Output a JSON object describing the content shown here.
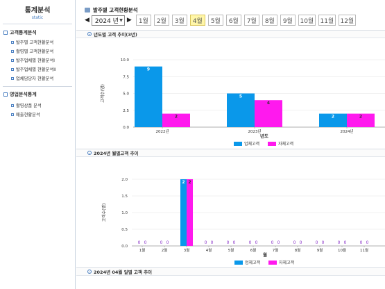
{
  "sidebar": {
    "title": "통계분석",
    "subtitle": "static",
    "groups": [
      {
        "label": "고객통계분석",
        "items": [
          {
            "label": "발주별 고객현황분석"
          },
          {
            "label": "촬영별 고객현황분석"
          },
          {
            "label": "발주업체별 현황분석Ⅰ"
          },
          {
            "label": "발주업체별 현황분석Ⅱ"
          },
          {
            "label": "업체담당자 현황분석"
          }
        ]
      },
      {
        "label": "영업분석통계",
        "items": [
          {
            "label": "촬영상품 분석"
          },
          {
            "label": "매출현황분석"
          }
        ]
      }
    ]
  },
  "header": {
    "title": "발주별 고객현황분석"
  },
  "toolbar": {
    "year": "2024 년",
    "months": [
      "1월",
      "2월",
      "3월",
      "4월",
      "5월",
      "6월",
      "7월",
      "8월",
      "9월",
      "10월",
      "11월",
      "12월"
    ],
    "active_month": "4월"
  },
  "sections": {
    "yearly": "년도별 고객 추이(3년)",
    "monthly": "2024년 월별고객 추이",
    "daily": "2024년 04월 일별 고객 추이"
  },
  "colors": {
    "series1": "#0a98ea",
    "series2": "#ff19ee"
  },
  "chart_data": [
    {
      "type": "bar",
      "title": "년도별 고객 추이(3년)",
      "xlabel": "년도",
      "ylabel": "고객수(명)",
      "categories": [
        "2022년",
        "2023년",
        "2024년"
      ],
      "series": [
        {
          "name": "업체고객",
          "values": [
            9,
            5,
            2
          ]
        },
        {
          "name": "자체고객",
          "values": [
            2,
            4,
            2
          ]
        }
      ],
      "ylim": [
        0,
        10
      ],
      "yticks": [
        "0.0",
        "2.5",
        "5.0",
        "7.5",
        "10.0"
      ],
      "legend": "bottom"
    },
    {
      "type": "bar",
      "title": "2024년 월별고객 추이",
      "xlabel": "월",
      "ylabel": "고객수(명)",
      "categories": [
        "1월",
        "2월",
        "3월",
        "4월",
        "5월",
        "6월",
        "7월",
        "8월",
        "9월",
        "10월",
        "11월"
      ],
      "series": [
        {
          "name": "업체고객",
          "values": [
            0,
            0,
            2,
            0,
            0,
            0,
            0,
            0,
            0,
            0,
            0
          ]
        },
        {
          "name": "자체고객",
          "values": [
            0,
            0,
            2,
            0,
            0,
            0,
            0,
            0,
            0,
            0,
            0
          ]
        }
      ],
      "ylim": [
        0,
        2
      ],
      "yticks": [
        "0.0",
        "0.5",
        "1.0",
        "1.5",
        "2.0"
      ],
      "legend": "bottom"
    }
  ]
}
